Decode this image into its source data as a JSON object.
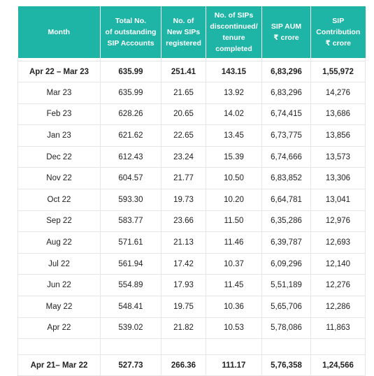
{
  "table": {
    "headers": [
      [
        "Month"
      ],
      [
        "Total No.",
        "of outstanding",
        "SIP Accounts"
      ],
      [
        "No. of",
        "New SIPs",
        "registered"
      ],
      [
        "No. of SIPs",
        "discontinued/",
        "tenure",
        "completed"
      ],
      [
        "SIP AUM",
        "₹ crore"
      ],
      [
        "SIP",
        "Contribution",
        "₹ crore"
      ]
    ],
    "summary_top": [
      "Apr 22 – Mar 23",
      "635.99",
      "251.41",
      "143.15",
      "6,83,296",
      "1,55,972"
    ],
    "rows": [
      [
        "Mar 23",
        "635.99",
        "21.65",
        "13.92",
        "6,83,296",
        "14,276"
      ],
      [
        "Feb 23",
        "628.26",
        "20.65",
        "14.02",
        "6,74,415",
        "13,686"
      ],
      [
        "Jan 23",
        "621.62",
        "22.65",
        "13.45",
        "6,73,775",
        "13,856"
      ],
      [
        "Dec 22",
        "612.43",
        "23.24",
        "15.39",
        "6,74,666",
        "13,573"
      ],
      [
        "Nov 22",
        "604.57",
        "21.77",
        "10.50",
        "6,83,852",
        "13,306"
      ],
      [
        "Oct 22",
        "593.30",
        "19.73",
        "10.20",
        "6,64,781",
        "13,041"
      ],
      [
        "Sep 22",
        "583.77",
        "23.66",
        "11.50",
        "6,35,286",
        "12,976"
      ],
      [
        "Aug 22",
        "571.61",
        "21.13",
        "11.46",
        "6,39,787",
        "12,693"
      ],
      [
        "Jul 22",
        "561.94",
        "17.42",
        "10.37",
        "6,09,296",
        "12,140"
      ],
      [
        "Jun 22",
        "554.89",
        "17.93",
        "11.45",
        "5,51,189",
        "12,276"
      ],
      [
        "May 22",
        "548.41",
        "19.75",
        "10.36",
        "5,65,706",
        "12,286"
      ],
      [
        "Apr 22",
        "539.02",
        "21.82",
        "10.53",
        "5,78,086",
        "11,863"
      ]
    ],
    "summary_bottom": [
      "Apr 21– Mar 22",
      "527.73",
      "266.36",
      "111.17",
      "5,76,358",
      "1,24,566"
    ]
  }
}
